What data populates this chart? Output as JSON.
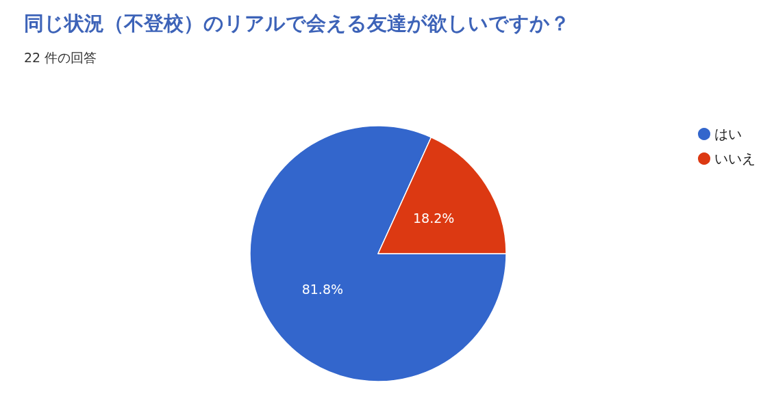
{
  "chart_data": {
    "type": "pie",
    "title": "同じ状況（不登校）のリアルで会える友達が欲しいですか？",
    "subtitle": "22 件の回答",
    "categories": [
      "はい",
      "いいえ"
    ],
    "values": [
      81.8,
      18.2
    ],
    "colors": [
      "#3366cc",
      "#dc3912"
    ],
    "value_labels": [
      "81.8%",
      "18.2%"
    ],
    "legend": "top right"
  }
}
